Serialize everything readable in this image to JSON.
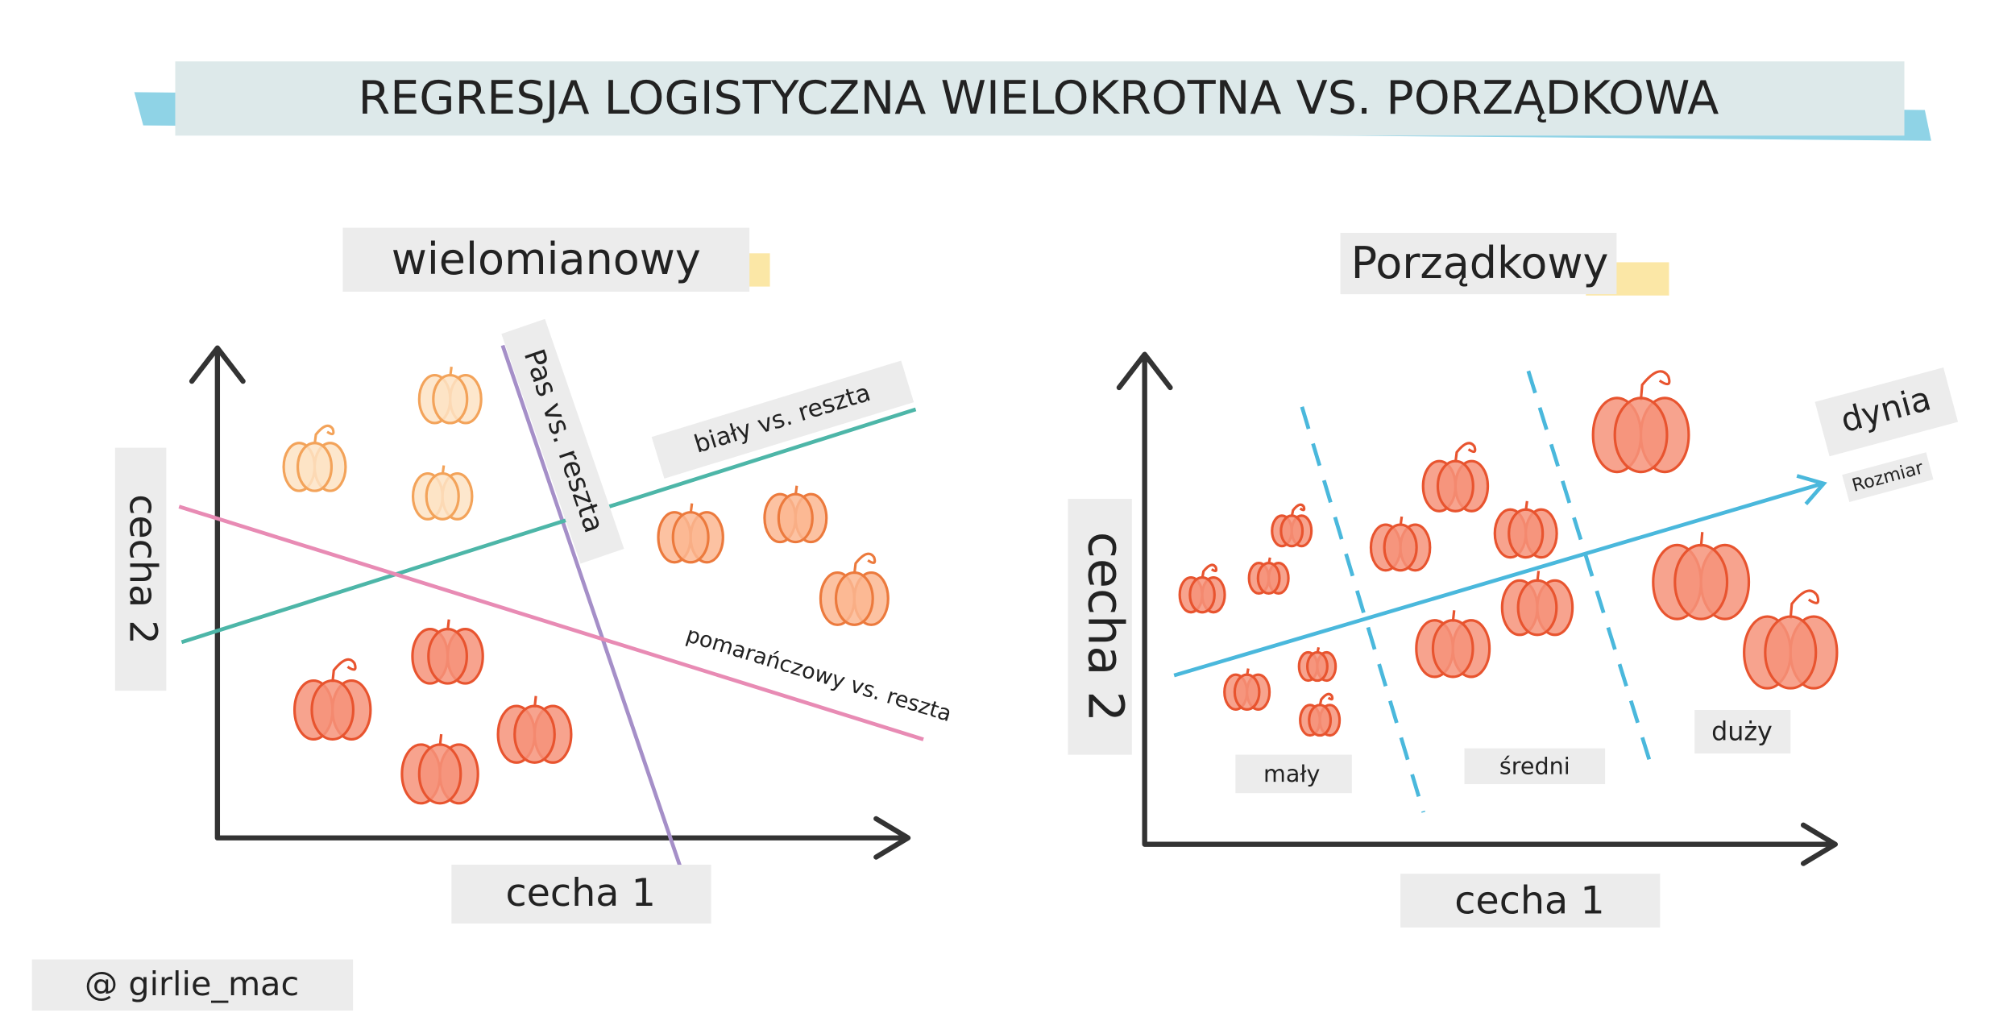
{
  "title": "REGRESJA LOGISTYCZNA WIELOKROTNA VS. PORZĄDKOWA",
  "multinomial": {
    "heading": "wielomianowy",
    "lines": [
      "Pas vs. reszta",
      "biały vs. reszta",
      "pomarańczowy vs. reszta"
    ],
    "y_axis": "cecha 2",
    "x_axis": "cecha 1"
  },
  "ordinal": {
    "heading": "Porządkowy",
    "arrow_label": "dynia",
    "arrow_sublabel": "Rozmiar",
    "y_axis": "cecha 2",
    "x_axis": "cecha 1",
    "classes": [
      "mały",
      "średni",
      "duży"
    ]
  },
  "credit": "@ girlie_mac"
}
